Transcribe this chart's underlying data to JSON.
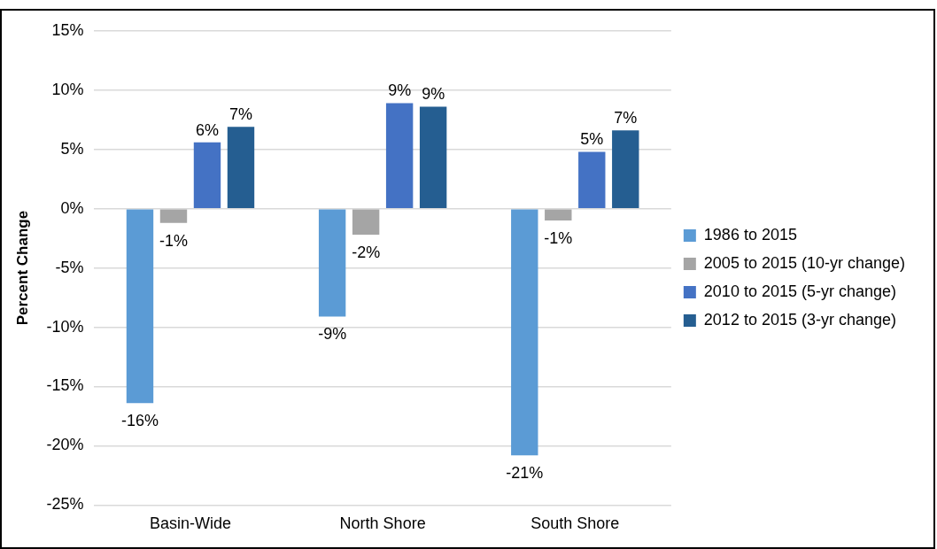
{
  "chart_data": {
    "type": "bar",
    "ylabel": "Percent Change",
    "categories": [
      "Basin-Wide",
      "North Shore",
      "South Shore"
    ],
    "series": [
      {
        "name": "1986 to 2015",
        "color": "#5b9bd5",
        "values": [
          -16.4,
          -9.1,
          -20.8
        ],
        "value_labels": [
          "-16%",
          "-9%",
          "-21%"
        ]
      },
      {
        "name": "2005 to 2015 (10-yr change)",
        "color": "#a5a5a5",
        "values": [
          -1.2,
          -2.2,
          -1.0
        ],
        "value_labels": [
          "-1%",
          "-2%",
          "-1%"
        ]
      },
      {
        "name": "2010 to 2015 (5-yr change)",
        "color": "#4472c4",
        "values": [
          5.6,
          8.9,
          4.8
        ],
        "value_labels": [
          "6%",
          "9%",
          "5%"
        ]
      },
      {
        "name": "2012 to 2015 (3-yr change)",
        "color": "#255e91",
        "values": [
          6.9,
          8.6,
          6.6
        ],
        "value_labels": [
          "7%",
          "9%",
          "7%"
        ]
      }
    ],
    "ylim": [
      -25,
      15
    ],
    "yticks": [
      {
        "value": -25,
        "label": "-25%"
      },
      {
        "value": -20,
        "label": "-20%"
      },
      {
        "value": -15,
        "label": "-15%"
      },
      {
        "value": -10,
        "label": "-10%"
      },
      {
        "value": -5,
        "label": "-5%"
      },
      {
        "value": 0,
        "label": "0%"
      },
      {
        "value": 5,
        "label": "5%"
      },
      {
        "value": 10,
        "label": "10%"
      },
      {
        "value": 15,
        "label": "15%"
      }
    ],
    "grid": "y",
    "legend": "right"
  }
}
